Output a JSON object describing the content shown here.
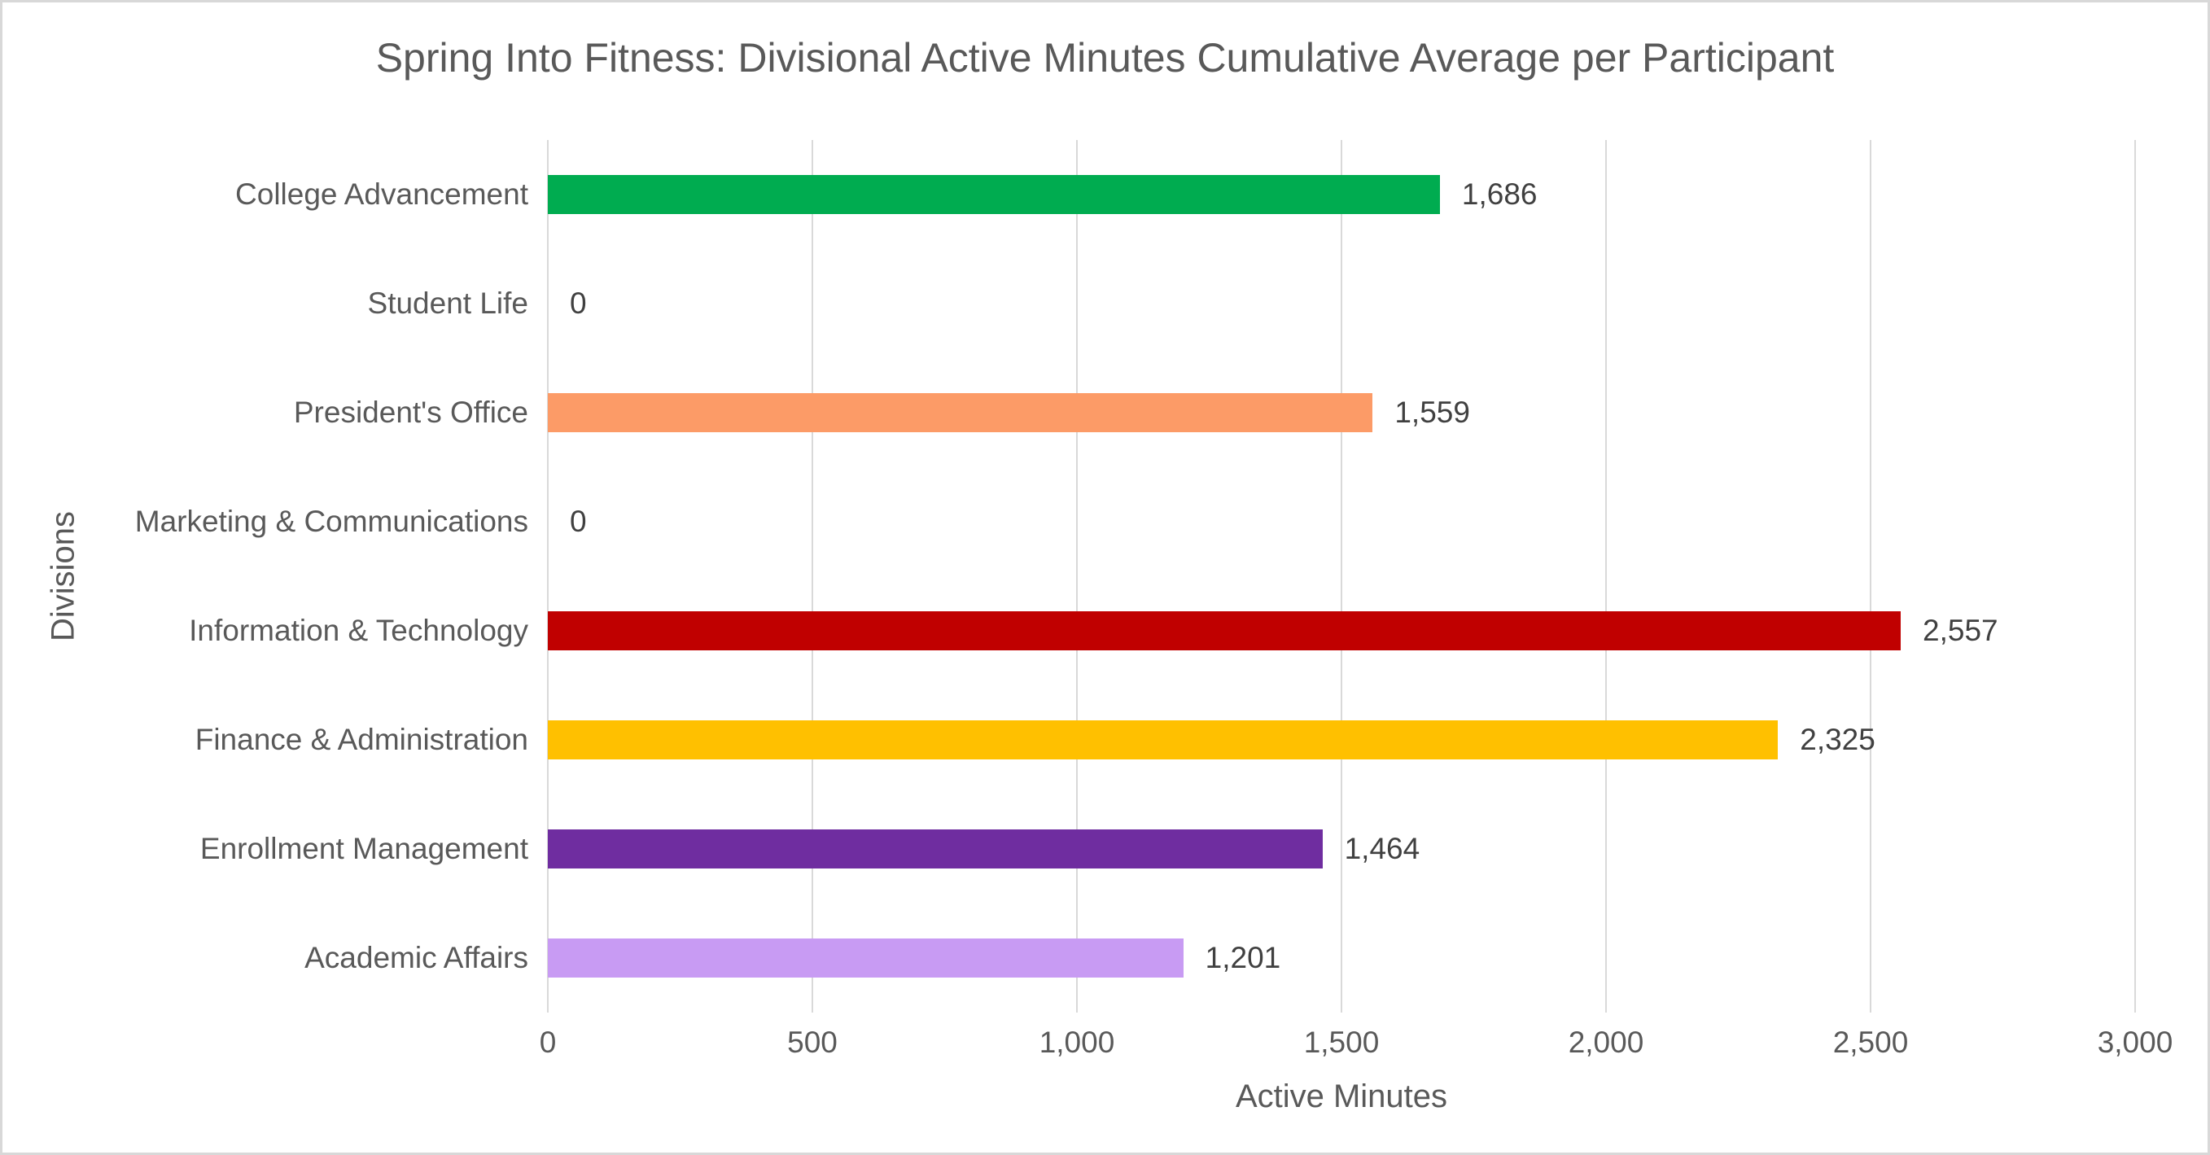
{
  "colors": {
    "frame_border": "#D8D8D8",
    "background": "#FFFFFF",
    "title_text": "#595959",
    "axis_text": "#595959",
    "data_label_text": "#404040",
    "gridline": "#D9D9D9"
  },
  "chart_data": {
    "type": "bar",
    "orientation": "horizontal",
    "title": "Spring Into Fitness: Divisional Active Minutes Cumulative Average per Participant",
    "xlabel": "Active Minutes",
    "ylabel": "Divisions",
    "xlim": [
      0,
      3000
    ],
    "x_ticks": [
      0,
      500,
      1000,
      1500,
      2000,
      2500,
      3000
    ],
    "x_tick_labels": [
      "0",
      "500",
      "1,000",
      "1,500",
      "2,000",
      "2,500",
      "3,000"
    ],
    "grid": "vertical-only",
    "legend": "none",
    "categories": [
      "College Advancement",
      "Student Life",
      "President's Office",
      "Marketing & Communications",
      "Information & Technology",
      "Finance & Administration",
      "Enrollment Management",
      "Academic Affairs"
    ],
    "values": [
      1686,
      0,
      1559,
      0,
      2557,
      2325,
      1464,
      1201
    ],
    "value_labels": [
      "1,686",
      "0",
      "1,559",
      "0",
      "2,557",
      "2,325",
      "1,464",
      "1,201"
    ],
    "bar_colors": [
      "#00AC50",
      null,
      "#FC9B67",
      null,
      "#C00000",
      "#FFC000",
      "#6F2DA0",
      "#C89BF3"
    ]
  }
}
